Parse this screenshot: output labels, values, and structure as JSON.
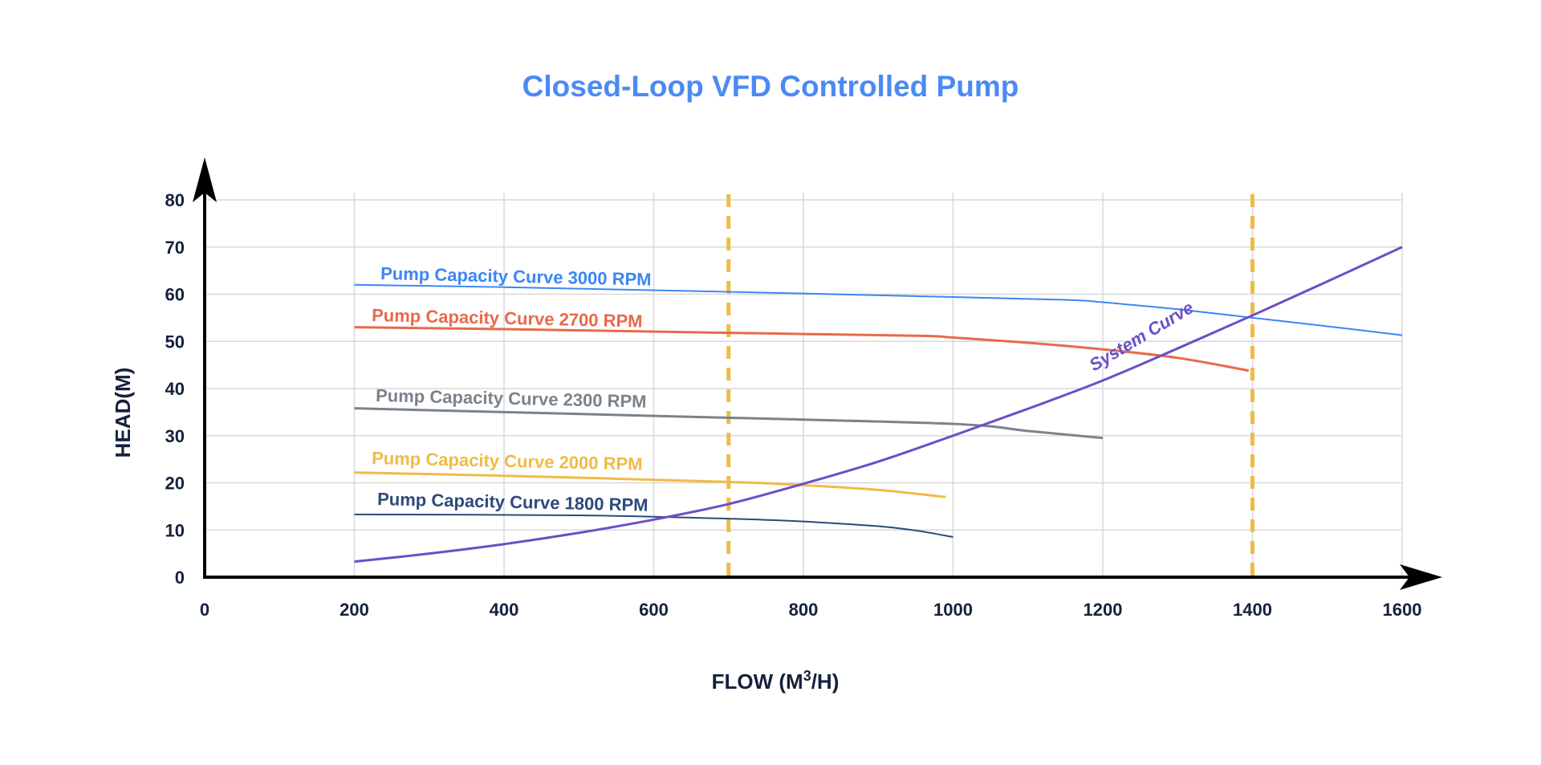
{
  "chart_data": {
    "type": "line",
    "title": "Closed-Loop VFD Controlled Pump",
    "title_color": "#4a8af4",
    "xlabel": "FLOW (M",
    "xlabel_sup": "3",
    "xlabel_end": "/H)",
    "ylabel": "HEAD(M)",
    "xlim": [
      0,
      1600
    ],
    "ylim": [
      0,
      80
    ],
    "xticks": [
      0,
      200,
      400,
      600,
      800,
      1000,
      1200,
      1400,
      1600
    ],
    "yticks": [
      0,
      10,
      20,
      30,
      40,
      50,
      60,
      70,
      80
    ],
    "grid": true,
    "vertical_reference_lines": {
      "x": [
        700,
        1400
      ],
      "color": "#f0bb45",
      "style": "dashed"
    },
    "series": [
      {
        "name": "Pump Capacity Curve 3000 RPM",
        "color": "#3d85f5",
        "width": 2,
        "x": [
          200,
          400,
          700,
          1000,
          1150,
          1200,
          1300,
          1400,
          1500,
          1600
        ],
        "y": [
          62,
          61.5,
          60.5,
          59.4,
          58.8,
          58.3,
          56.8,
          55,
          53.2,
          51.3
        ]
      },
      {
        "name": "Pump Capacity Curve 2700 RPM",
        "color": "#e8694a",
        "width": 3,
        "x": [
          200,
          400,
          700,
          950,
          1000,
          1100,
          1200,
          1300,
          1395
        ],
        "y": [
          53,
          52.6,
          51.8,
          51.2,
          50.8,
          49.7,
          48.3,
          46.5,
          43.8
        ]
      },
      {
        "name": "Pump Capacity Curve 2300 RPM",
        "color": "#7a838c",
        "width": 3,
        "x": [
          200,
          400,
          700,
          1000,
          1100,
          1200
        ],
        "y": [
          35.8,
          35,
          33.8,
          32.5,
          31,
          29.5
        ]
      },
      {
        "name": "Pump Capacity Curve 2000 RPM",
        "color": "#f0bb45",
        "width": 3,
        "x": [
          200,
          400,
          700,
          800,
          900,
          990
        ],
        "y": [
          22.2,
          21.5,
          20.2,
          19.5,
          18.5,
          17
        ]
      },
      {
        "name": "Pump Capacity Curve 1800 RPM",
        "color": "#2c4a7a",
        "width": 2,
        "x": [
          200,
          500,
          700,
          800,
          900,
          950,
          1000
        ],
        "y": [
          13.3,
          13.1,
          12.4,
          11.8,
          10.8,
          9.9,
          8.5
        ]
      },
      {
        "name": "System Curve",
        "color": "#6a4fc8",
        "width": 3,
        "x": [
          200,
          300,
          400,
          500,
          600,
          700,
          800,
          900,
          1000,
          1100,
          1200,
          1300,
          1400,
          1500,
          1600
        ],
        "y": [
          3.3,
          5,
          7,
          9.4,
          12.2,
          15.5,
          19.8,
          24.5,
          30,
          35.7,
          41.7,
          48.5,
          55.5,
          62.7,
          70
        ]
      }
    ]
  }
}
